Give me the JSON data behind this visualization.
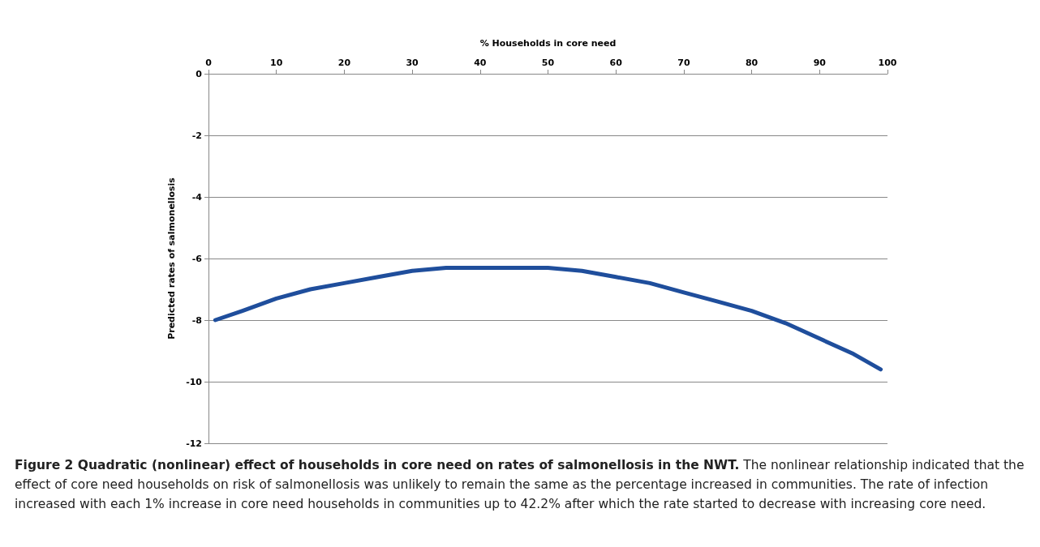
{
  "chart_data": {
    "type": "line",
    "title": "Figure 2 Quadratic (nonlinear) effect of households in core need on rates of salmonellosis in the NWT.",
    "annotations": [
      "The nonlinear relationship indicated that the effect of core need households on risk of salmonellosis was unlikely to remain the same as the percentage increased in communities. The rate of infection increased with each 1% increase in core need households in communities up to 42.2% after which the rate started to decrease with increasing core need."
    ],
    "xlabel": "% Households in core need",
    "ylabel": "Predicted rates of salmonellosis",
    "series": [
      {
        "color": "#1f4e9c",
        "x": [
          1,
          5,
          10,
          15,
          20,
          25,
          30,
          35,
          40,
          42,
          45,
          50,
          55,
          60,
          65,
          70,
          75,
          80,
          85,
          90,
          95,
          99
        ],
        "values": [
          -8.0,
          -7.7,
          -7.3,
          -7.0,
          -6.8,
          -6.6,
          -6.4,
          -6.3,
          -6.3,
          -6.3,
          -6.3,
          -6.3,
          -6.4,
          -6.6,
          -6.8,
          -7.1,
          -7.4,
          -7.7,
          -8.1,
          -8.6,
          -9.1,
          -9.6
        ]
      }
    ],
    "xlim": [
      0,
      100
    ],
    "xticks": [
      0,
      10,
      20,
      30,
      40,
      50,
      60,
      70,
      80,
      90,
      100
    ],
    "ylim": [
      -12,
      0
    ],
    "yticks": [
      -12,
      -10,
      -8,
      -6,
      -4,
      -2,
      0
    ],
    "grid": "y",
    "marker": "none",
    "line_style": "solid"
  }
}
